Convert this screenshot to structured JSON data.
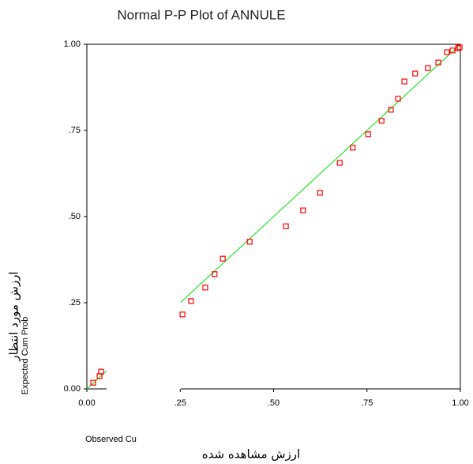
{
  "chart_data": {
    "type": "scatter",
    "title": "Normal P-P Plot of ANNULE",
    "x_label": "Observed Cu",
    "x_label_fa": "ارزش مشاهده شده",
    "y_label": "Expected Cum Prob",
    "y_label_fa": "ارزش مورد انتظار",
    "xlim": [
      0,
      1
    ],
    "ylim": [
      0,
      1
    ],
    "xticks": [
      {
        "value": 0,
        "label": "0.00"
      },
      {
        "value": 0.25,
        "label": ".25"
      },
      {
        "value": 0.5,
        "label": ".50"
      },
      {
        "value": 0.75,
        "label": ".75"
      },
      {
        "value": 1,
        "label": "1.00"
      }
    ],
    "yticks": [
      {
        "value": 0,
        "label": "0.00"
      },
      {
        "value": 0.25,
        "label": ".25"
      },
      {
        "value": 0.5,
        "label": ".50"
      },
      {
        "value": 0.75,
        "label": ".75"
      },
      {
        "value": 1,
        "label": "1.00"
      }
    ],
    "color": "#ff0000",
    "reference_line_color": "#00e000",
    "x": [
      0.017,
      0.034,
      0.038,
      0.256,
      0.279,
      0.317,
      0.342,
      0.364,
      0.436,
      0.533,
      0.579,
      0.624,
      0.677,
      0.712,
      0.753,
      0.789,
      0.814,
      0.833,
      0.85,
      0.879,
      0.913,
      0.941,
      0.964,
      0.979,
      0.994,
      0.998
    ],
    "values": [
      0.018,
      0.037,
      0.05,
      0.216,
      0.255,
      0.294,
      0.333,
      0.378,
      0.427,
      0.472,
      0.518,
      0.569,
      0.656,
      0.7,
      0.739,
      0.778,
      0.81,
      0.842,
      0.892,
      0.915,
      0.931,
      0.947,
      0.977,
      0.982,
      0.989,
      0.991
    ]
  }
}
